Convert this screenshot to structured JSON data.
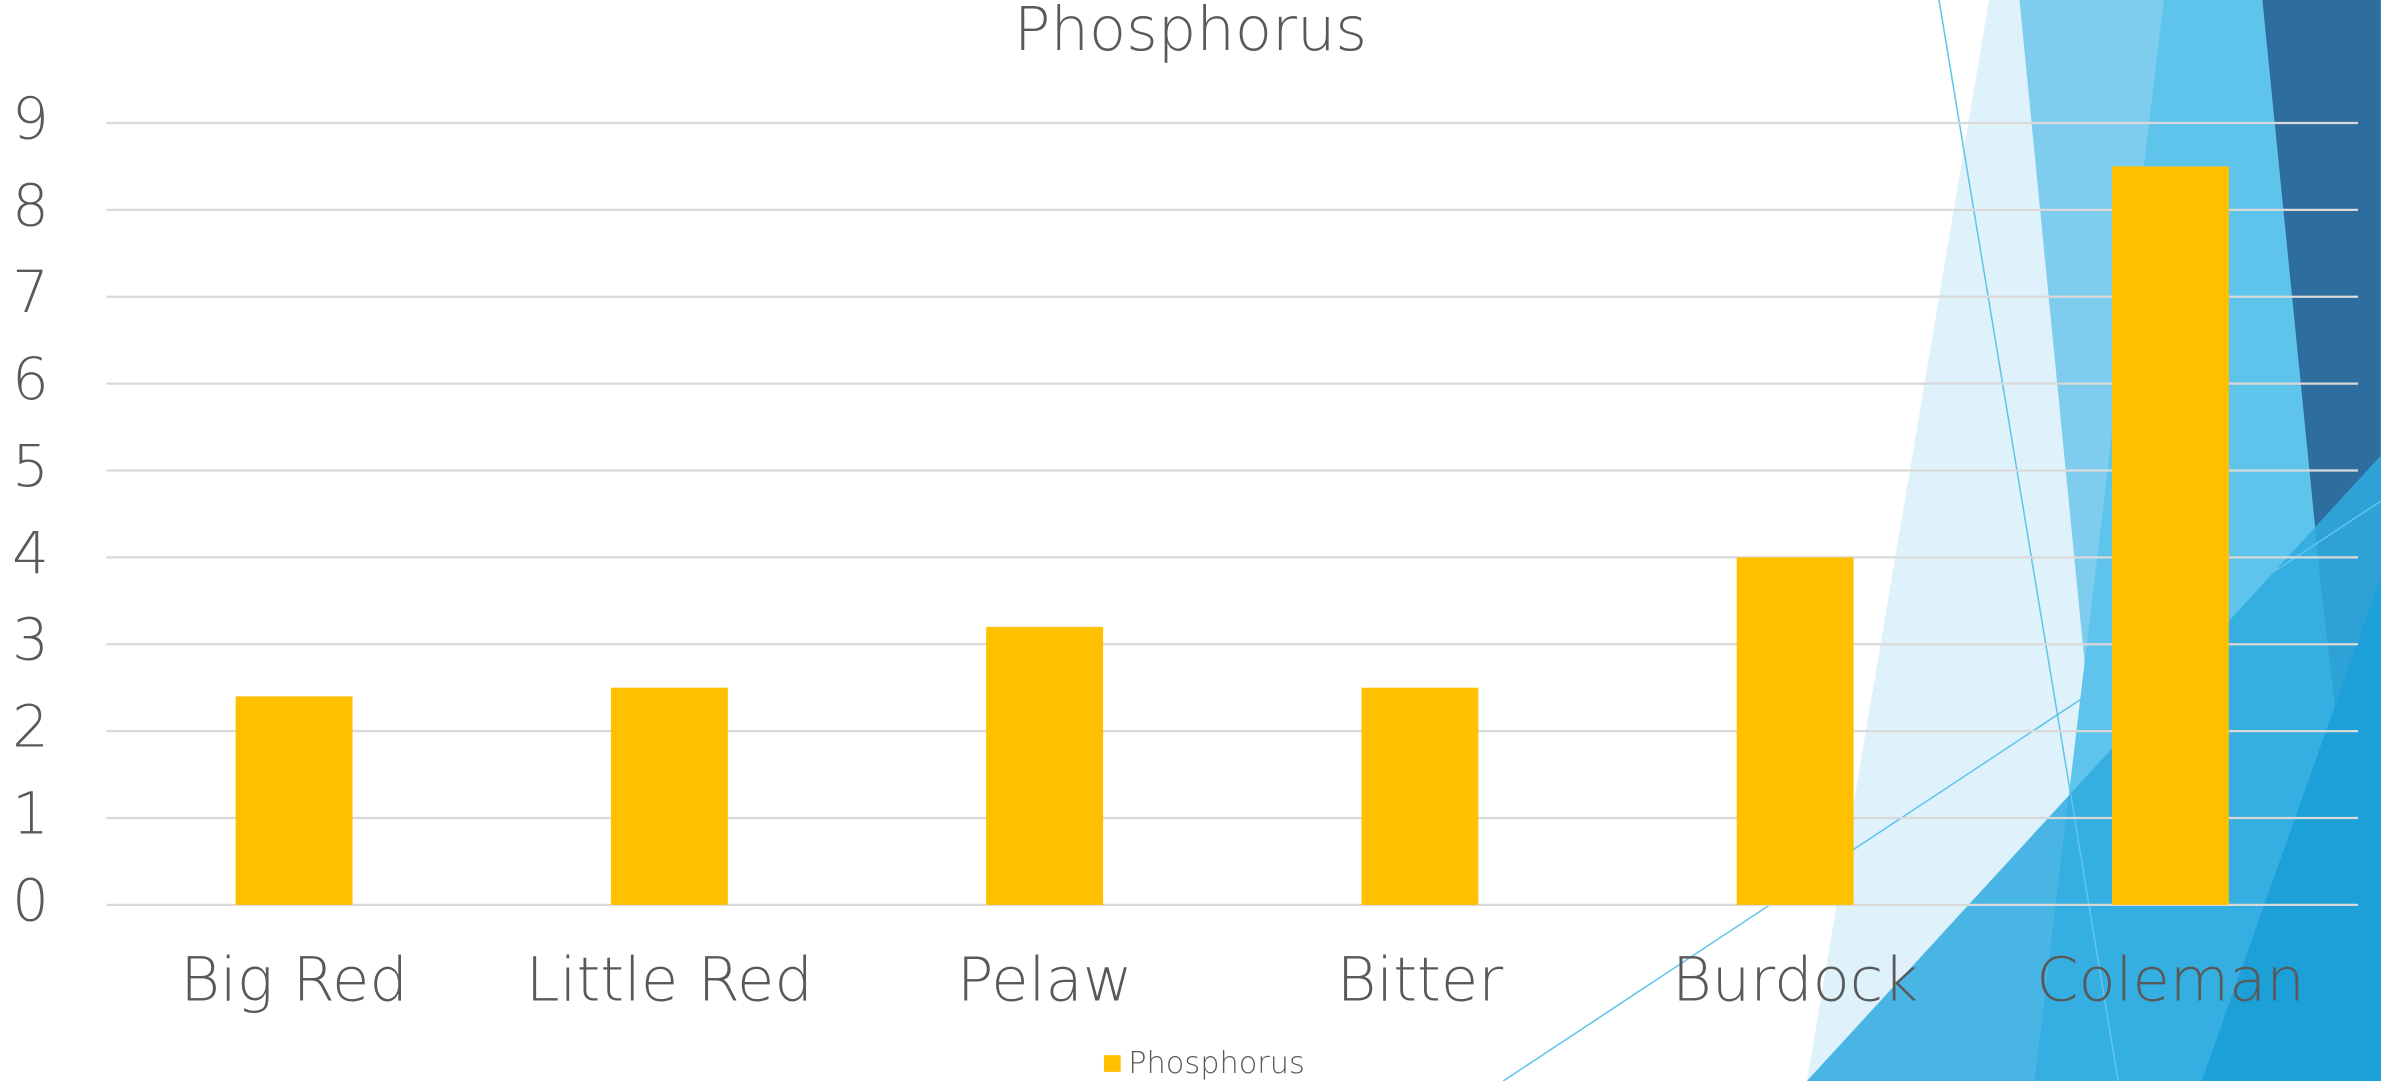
{
  "chart_data": {
    "type": "bar",
    "title": "Phosphorus",
    "categories": [
      "Big Red",
      "Little Red",
      "Pelaw",
      "Bitter",
      "Burdock",
      "Coleman"
    ],
    "series": [
      {
        "name": "Phosphorus",
        "color": "#ffc000",
        "values": [
          2.4,
          2.5,
          3.2,
          2.5,
          4.0,
          8.5
        ]
      }
    ],
    "ylim": [
      0,
      9
    ],
    "yticks": [
      0,
      1,
      2,
      3,
      4,
      5,
      6,
      7,
      8,
      9
    ],
    "grid": true,
    "legend": "bottom"
  }
}
